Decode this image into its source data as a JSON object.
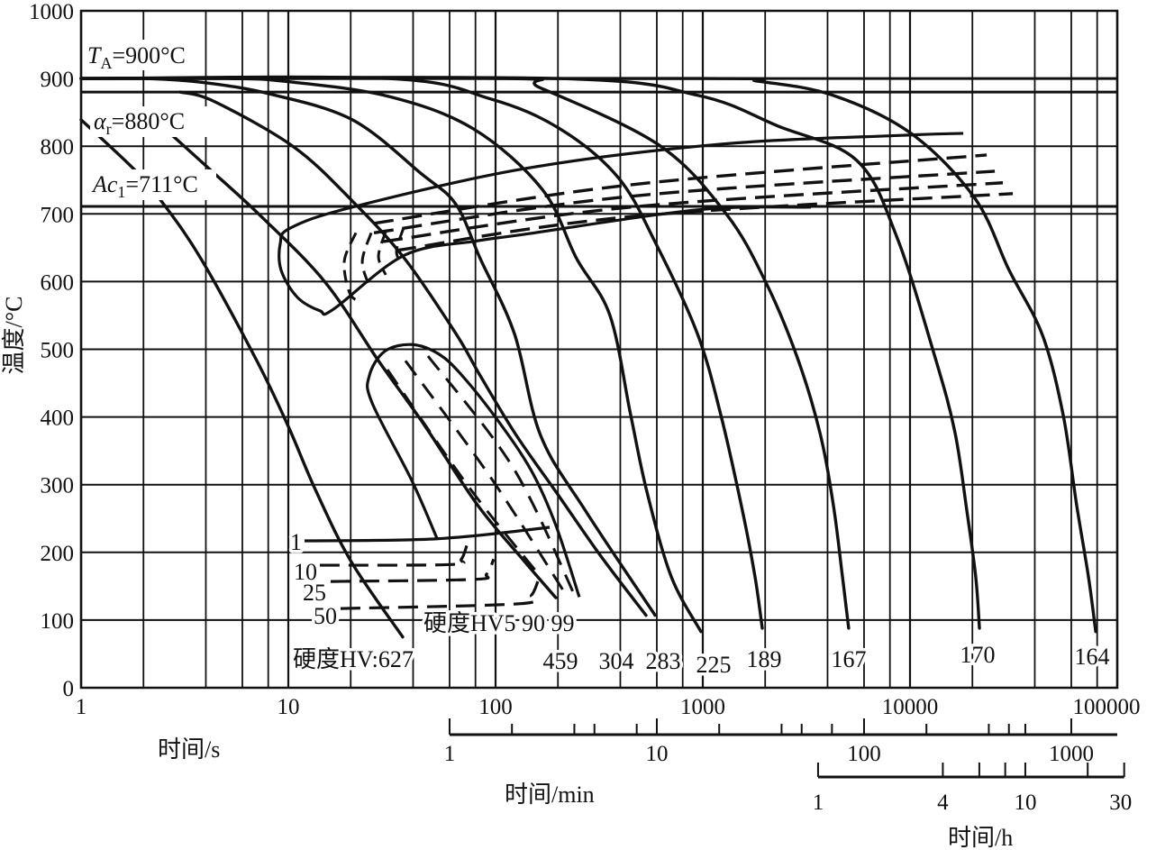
{
  "chart_data": {
    "type": "line",
    "title": "",
    "ylabel": "温度/°C",
    "xlabel_s": "时间/s",
    "xlabel_min": "时间/min",
    "xlabel_h": "时间/h",
    "x_scale": "log",
    "xlim_s": [
      1,
      100000
    ],
    "ylim": [
      0,
      1000
    ],
    "grid": true,
    "point_format": "[log10(time in s), temperature in °C]",
    "y_ticks": [
      "0",
      "100",
      "200",
      "300",
      "400",
      "500",
      "600",
      "700",
      "800",
      "900",
      "1000"
    ],
    "x_ticks_s": [
      "1",
      "10",
      "100",
      "1000",
      "10000",
      "100000"
    ],
    "min_axis": {
      "ticks": [
        1,
        2,
        4,
        5,
        8,
        10,
        20,
        40,
        50,
        70,
        100,
        200,
        400,
        500,
        600,
        1000
      ],
      "labels": [
        "1",
        "10",
        "100",
        "1000"
      ]
    },
    "h_axis": {
      "ticks": [
        1,
        4,
        6,
        8,
        10,
        20,
        30
      ],
      "labels": [
        "1",
        "4",
        "10",
        "30"
      ]
    },
    "reference_lines": [
      {
        "name": "TA",
        "temp": 900,
        "symbol": "T",
        "sub": "A",
        "value": "=900°C"
      },
      {
        "name": "alpha_r",
        "temp": 880,
        "symbol": "α",
        "sub": "r",
        "value": "=880°C"
      },
      {
        "name": "Ac1",
        "temp": 711,
        "symbol": "Ac",
        "sub": "1",
        "value": "=711°C"
      }
    ],
    "hardness_prefix": "硬度HV:",
    "bainite_label": "硬度HV5 90 99",
    "cooling_curves": [
      {
        "hardness": "627",
        "points": [
          [
            0,
            839
          ],
          [
            0.252,
            767
          ],
          [
            0.387,
            719
          ],
          [
            0.578,
            634
          ],
          [
            0.848,
            483
          ],
          [
            1.0,
            386
          ],
          [
            1.13,
            293
          ],
          [
            1.304,
            186
          ],
          [
            1.552,
            75
          ]
        ]
      },
      {
        "hardness": "459",
        "points": [
          [
            0.4,
            827
          ],
          [
            0.617,
            767
          ],
          [
            0.87,
            696
          ],
          [
            1.178,
            599
          ],
          [
            1.435,
            483
          ],
          [
            1.652,
            390
          ],
          [
            1.913,
            270
          ],
          [
            2.13,
            190
          ],
          [
            2.291,
            133
          ]
        ]
      },
      {
        "hardness": "304",
        "points": [
          [
            0.478,
            880
          ],
          [
            0.643,
            866
          ],
          [
            1.026,
            799
          ],
          [
            1.309,
            719
          ],
          [
            1.561,
            634
          ],
          [
            1.809,
            523
          ],
          [
            1.926,
            461
          ],
          [
            2.1,
            373
          ],
          [
            2.304,
            284
          ],
          [
            2.509,
            194
          ],
          [
            2.726,
            107
          ]
        ]
      },
      {
        "hardness": "283",
        "points": [
          [
            0,
            900
          ],
          [
            0.304,
            900
          ],
          [
            0.591,
            894
          ],
          [
            0.913,
            877
          ],
          [
            1.309,
            839
          ],
          [
            1.643,
            759
          ],
          [
            1.809,
            714
          ],
          [
            1.926,
            634
          ],
          [
            2.091,
            523
          ],
          [
            2.217,
            373
          ],
          [
            2.435,
            261
          ],
          [
            2.77,
            107
          ]
        ]
      },
      {
        "hardness": "225",
        "points": [
          [
            0,
            900
          ],
          [
            0.696,
            900
          ],
          [
            0.978,
            896
          ],
          [
            1.478,
            874
          ],
          [
            1.891,
            826
          ],
          [
            2.226,
            736
          ],
          [
            2.391,
            634
          ],
          [
            2.552,
            550
          ],
          [
            2.652,
            403
          ],
          [
            2.73,
            290
          ],
          [
            2.848,
            164
          ],
          [
            2.991,
            83
          ]
        ]
      },
      {
        "hardness": "189",
        "points": [
          [
            0,
            900
          ],
          [
            1.478,
            900
          ],
          [
            1.974,
            870
          ],
          [
            2.309,
            826
          ],
          [
            2.591,
            754
          ],
          [
            2.774,
            656
          ],
          [
            2.974,
            523
          ],
          [
            3.087,
            403
          ],
          [
            3.191,
            262
          ],
          [
            3.252,
            164
          ],
          [
            3.287,
            88
          ]
        ]
      },
      {
        "hardness": "167",
        "points": [
          [
            0,
            900
          ],
          [
            2.043,
            900
          ],
          [
            2.217,
            886
          ],
          [
            2.787,
            802
          ],
          [
            3.113,
            700
          ],
          [
            3.304,
            599
          ],
          [
            3.457,
            487
          ],
          [
            3.565,
            377
          ],
          [
            3.63,
            270
          ],
          [
            3.674,
            164
          ],
          [
            3.704,
            88
          ]
        ]
      },
      {
        "hardness": "170",
        "points": [
          [
            0,
            900
          ],
          [
            2.304,
            900
          ],
          [
            2.978,
            875
          ],
          [
            3.361,
            830
          ],
          [
            3.743,
            779
          ],
          [
            3.935,
            667
          ],
          [
            4.122,
            487
          ],
          [
            4.217,
            377
          ],
          [
            4.274,
            262
          ],
          [
            4.317,
            164
          ],
          [
            4.335,
            88
          ]
        ]
      },
      {
        "hardness": "164",
        "points": [
          [
            0,
            900
          ],
          [
            3.0,
            900
          ],
          [
            3.265,
            896
          ],
          [
            3.63,
            875
          ],
          [
            4.009,
            818
          ],
          [
            4.313,
            723
          ],
          [
            4.478,
            617
          ],
          [
            4.639,
            521
          ],
          [
            4.739,
            403
          ],
          [
            4.804,
            270
          ],
          [
            4.861,
            164
          ],
          [
            4.896,
            83
          ]
        ]
      }
    ],
    "ferrite_pearlite_region": {
      "outline": [
        [
          4.257,
          819
        ],
        [
          3.957,
          816
        ],
        [
          3.087,
          803
        ],
        [
          2.143,
          767
        ],
        [
          1.309,
          710
        ],
        [
          1.009,
          679
        ],
        [
          0.961,
          656
        ],
        [
          0.965,
          617
        ],
        [
          1.043,
          577
        ],
        [
          1.152,
          557
        ],
        [
          1.217,
          559
        ],
        [
          1.561,
          639
        ],
        [
          1.909,
          660
        ],
        [
          2.143,
          670
        ],
        [
          2.974,
          706
        ],
        [
          3.522,
          710
        ]
      ],
      "dashed_rows": [
        [
          [
            1.413,
            686
          ],
          [
            2.652,
            743
          ],
          [
            4.37,
            787
          ]
        ],
        [
          [
            1.413,
            672
          ],
          [
            2.652,
            726
          ],
          [
            4.409,
            763
          ]
        ],
        [
          [
            1.457,
            659
          ],
          [
            2.652,
            710
          ],
          [
            4.448,
            746
          ]
        ],
        [
          [
            1.522,
            646
          ],
          [
            2.652,
            696
          ],
          [
            4.496,
            730
          ]
        ]
      ],
      "dashed_arcs": [
        [
          [
            1.326,
            672
          ],
          [
            1.27,
            630
          ],
          [
            1.296,
            583
          ],
          [
            1.348,
            570
          ]
        ],
        [
          [
            1.4,
            672
          ],
          [
            1.357,
            630
          ],
          [
            1.391,
            593
          ]
        ],
        [
          [
            1.47,
            674
          ],
          [
            1.435,
            637
          ],
          [
            1.47,
            610
          ]
        ],
        [
          [
            1.557,
            680
          ],
          [
            1.522,
            646
          ],
          [
            1.543,
            627
          ]
        ]
      ]
    },
    "bainite_region": {
      "outline": [
        [
          1.717,
          221
        ],
        [
          1.596,
          306
        ],
        [
          1.404,
          421
        ],
        [
          1.391,
          461
        ],
        [
          1.465,
          497
        ],
        [
          1.596,
          507
        ],
        [
          1.726,
          493
        ],
        [
          1.839,
          461
        ],
        [
          2.013,
          394
        ],
        [
          2.174,
          320
        ],
        [
          2.291,
          240
        ],
        [
          2.404,
          134
        ]
      ],
      "dashed_lines": [
        [
          [
            1.478,
            470
          ],
          [
            1.87,
            297
          ],
          [
            2.217,
            164
          ]
        ],
        [
          [
            1.565,
            483
          ],
          [
            1.978,
            310
          ],
          [
            2.326,
            144
          ]
        ],
        [
          [
            1.674,
            490
          ],
          [
            2.087,
            324
          ],
          [
            2.391,
            130
          ]
        ]
      ]
    },
    "martensite_lines": [
      {
        "label": "1",
        "style": "solid",
        "points": [
          [
            1.078,
            217
          ],
          [
            1.717,
            220
          ],
          [
            2.261,
            237
          ]
        ]
      },
      {
        "label": "10",
        "style": "dashed",
        "points": [
          [
            1.152,
            181
          ],
          [
            1.783,
            182
          ],
          [
            1.835,
            190
          ],
          [
            1.861,
            210
          ]
        ]
      },
      {
        "label": "25",
        "style": "dashed",
        "points": [
          [
            1.204,
            157
          ],
          [
            1.891,
            160
          ],
          [
            1.957,
            168
          ],
          [
            1.991,
            190
          ]
        ]
      },
      {
        "label": "50",
        "style": "dashed",
        "points": [
          [
            1.252,
            117
          ],
          [
            2.109,
            124
          ],
          [
            2.174,
            137
          ],
          [
            2.204,
            157
          ]
        ]
      }
    ]
  }
}
